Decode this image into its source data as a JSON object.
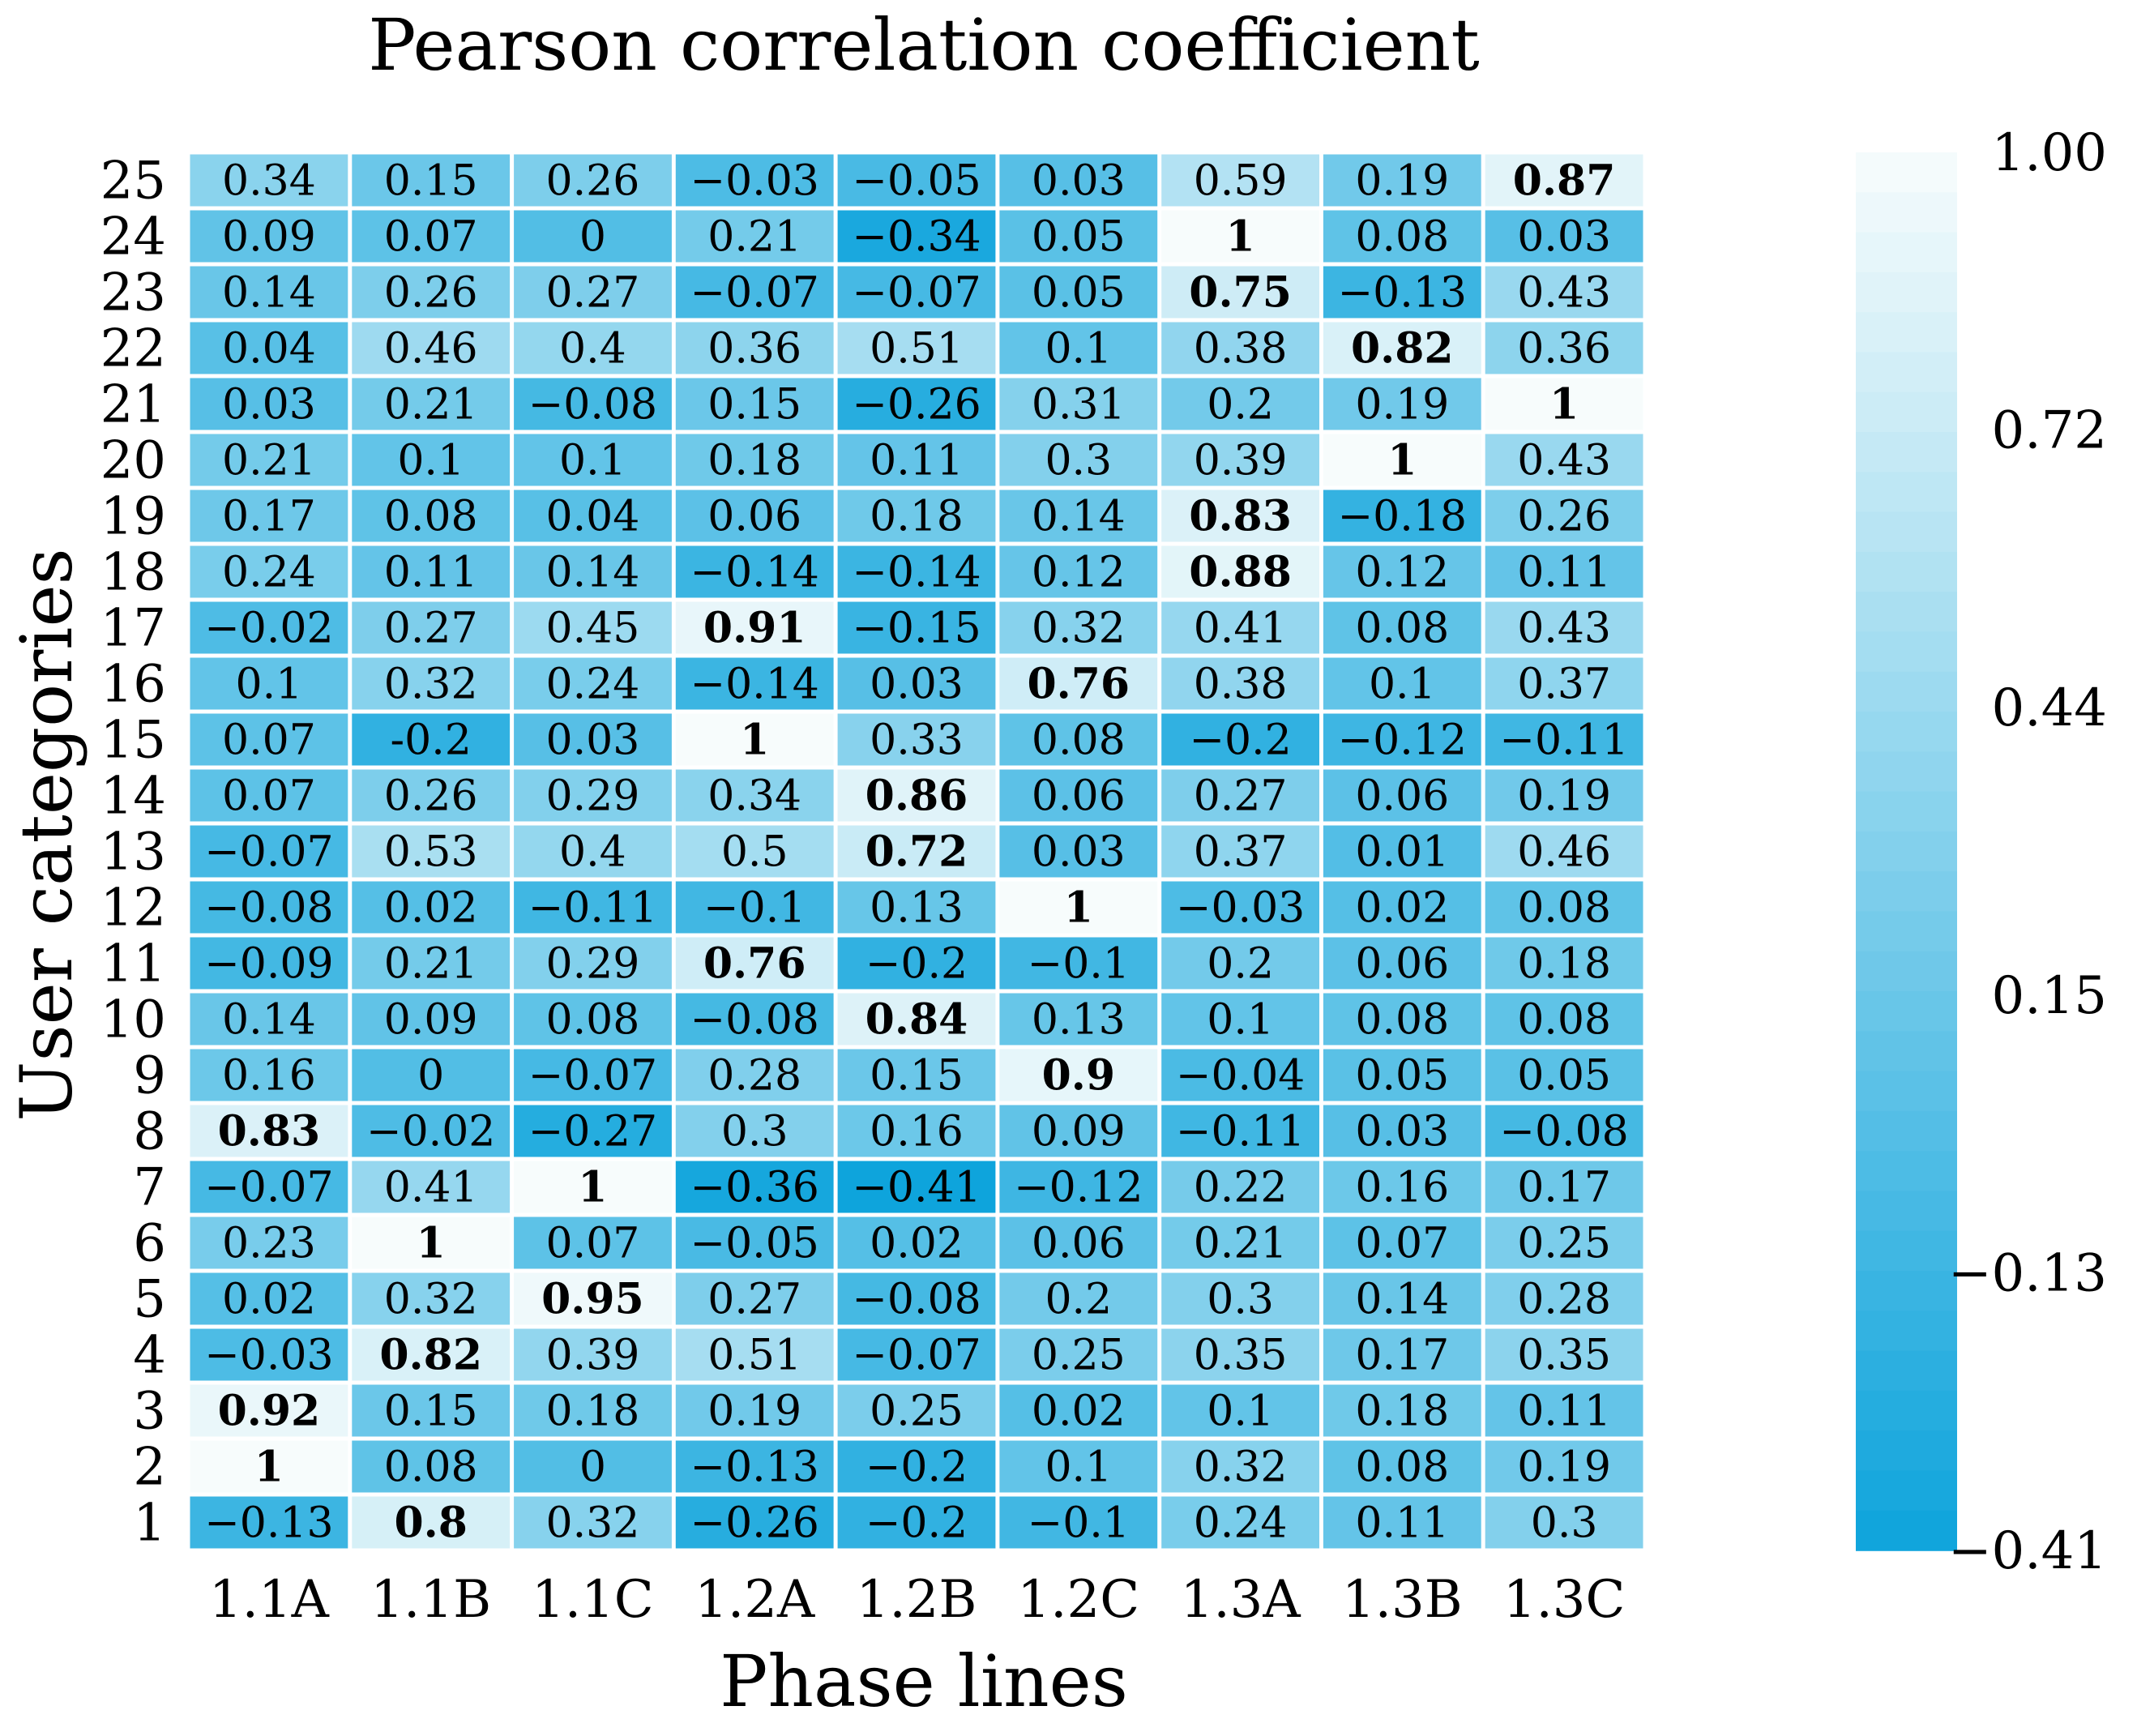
{
  "chart_data": {
    "type": "heatmap",
    "title": "Pearson correlation coefficient",
    "xlabel": "Phase lines",
    "ylabel": "User categories",
    "x_categories": [
      "1.1A",
      "1.1B",
      "1.1C",
      "1.2A",
      "1.2B",
      "1.2C",
      "1.3A",
      "1.3B",
      "1.3C"
    ],
    "y_categories": [
      "1",
      "2",
      "3",
      "4",
      "5",
      "6",
      "7",
      "8",
      "9",
      "10",
      "11",
      "12",
      "13",
      "14",
      "15",
      "16",
      "17",
      "18",
      "19",
      "20",
      "21",
      "22",
      "23",
      "24",
      "25"
    ],
    "value_labels": [
      [
        "−0.13",
        "0.8",
        "0.32",
        "−0.26",
        "−0.2",
        "−0.1",
        "0.24",
        "0.11",
        "0.3"
      ],
      [
        "1",
        "0.08",
        "0",
        "−0.13",
        "−0.2",
        "0.1",
        "0.32",
        "0.08",
        "0.19"
      ],
      [
        "0.92",
        "0.15",
        "0.18",
        "0.19",
        "0.25",
        "0.02",
        "0.1",
        "0.18",
        "0.11"
      ],
      [
        "−0.03",
        "0.82",
        "0.39",
        "0.51",
        "−0.07",
        "0.25",
        "0.35",
        "0.17",
        "0.35"
      ],
      [
        "0.02",
        "0.32",
        "0.95",
        "0.27",
        "−0.08",
        "0.2",
        "0.3",
        "0.14",
        "0.28"
      ],
      [
        "0.23",
        "1",
        "0.07",
        "−0.05",
        "0.02",
        "0.06",
        "0.21",
        "0.07",
        "0.25"
      ],
      [
        "−0.07",
        "0.41",
        "1",
        "−0.36",
        "−0.41",
        "−0.12",
        "0.22",
        "0.16",
        "0.17"
      ],
      [
        "0.83",
        "−0.02",
        "−0.27",
        "0.3",
        "0.16",
        "0.09",
        "−0.11",
        "0.03",
        "−0.08"
      ],
      [
        "0.16",
        "0",
        "−0.07",
        "0.28",
        "0.15",
        "0.9",
        "−0.04",
        "0.05",
        "0.05"
      ],
      [
        "0.14",
        "0.09",
        "0.08",
        "−0.08",
        "0.84",
        "0.13",
        "0.1",
        "0.08",
        "0.08"
      ],
      [
        "−0.09",
        "0.21",
        "0.29",
        "0.76",
        "−0.2",
        "−0.1",
        "0.2",
        "0.06",
        "0.18"
      ],
      [
        "−0.08",
        "0.02",
        "−0.11",
        "−0.1",
        "0.13",
        "1",
        "−0.03",
        "0.02",
        "0.08"
      ],
      [
        "−0.07",
        "0.53",
        "0.4",
        "0.5",
        "0.72",
        "0.03",
        "0.37",
        "0.01",
        "0.46"
      ],
      [
        "0.07",
        "0.26",
        "0.29",
        "0.34",
        "0.86",
        "0.06",
        "0.27",
        "0.06",
        "0.19"
      ],
      [
        "0.07",
        "-0.2",
        "0.03",
        "1",
        "0.33",
        "0.08",
        "−0.2",
        "−0.12",
        "−0.11"
      ],
      [
        "0.1",
        "0.32",
        "0.24",
        "−0.14",
        "0.03",
        "0.76",
        "0.38",
        "0.1",
        "0.37"
      ],
      [
        "−0.02",
        "0.27",
        "0.45",
        "0.91",
        "−0.15",
        "0.32",
        "0.41",
        "0.08",
        "0.43"
      ],
      [
        "0.24",
        "0.11",
        "0.14",
        "−0.14",
        "−0.14",
        "0.12",
        "0.88",
        "0.12",
        "0.11"
      ],
      [
        "0.17",
        "0.08",
        "0.04",
        "0.06",
        "0.18",
        "0.14",
        "0.83",
        "−0.18",
        "0.26"
      ],
      [
        "0.21",
        "0.1",
        "0.1",
        "0.18",
        "0.11",
        "0.3",
        "0.39",
        "1",
        "0.43"
      ],
      [
        "0.03",
        "0.21",
        "−0.08",
        "0.15",
        "−0.26",
        "0.31",
        "0.2",
        "0.19",
        "1"
      ],
      [
        "0.04",
        "0.46",
        "0.4",
        "0.36",
        "0.51",
        "0.1",
        "0.38",
        "0.82",
        "0.36"
      ],
      [
        "0.14",
        "0.26",
        "0.27",
        "−0.07",
        "−0.07",
        "0.05",
        "0.75",
        "−0.13",
        "0.43"
      ],
      [
        "0.09",
        "0.07",
        "0",
        "0.21",
        "−0.34",
        "0.05",
        "1",
        "0.08",
        "0.03"
      ],
      [
        "0.34",
        "0.15",
        "0.26",
        "−0.03",
        "−0.05",
        "0.03",
        "0.59",
        "0.19",
        "0.87"
      ]
    ],
    "bold_threshold": 0.7,
    "colorbar": {
      "min": -0.41,
      "max": 1.0,
      "tick_labels": [
        "1.00",
        "0.72",
        "0.44",
        "0.15",
        "−0.13",
        "−0.41"
      ],
      "tick_values": [
        1.0,
        0.72,
        0.44,
        0.15,
        -0.13,
        -0.41
      ]
    },
    "colors": {
      "low": "#0ea4dc",
      "high": "#f7fcfc",
      "text": "#000000",
      "gap": "#ffffff"
    }
  }
}
